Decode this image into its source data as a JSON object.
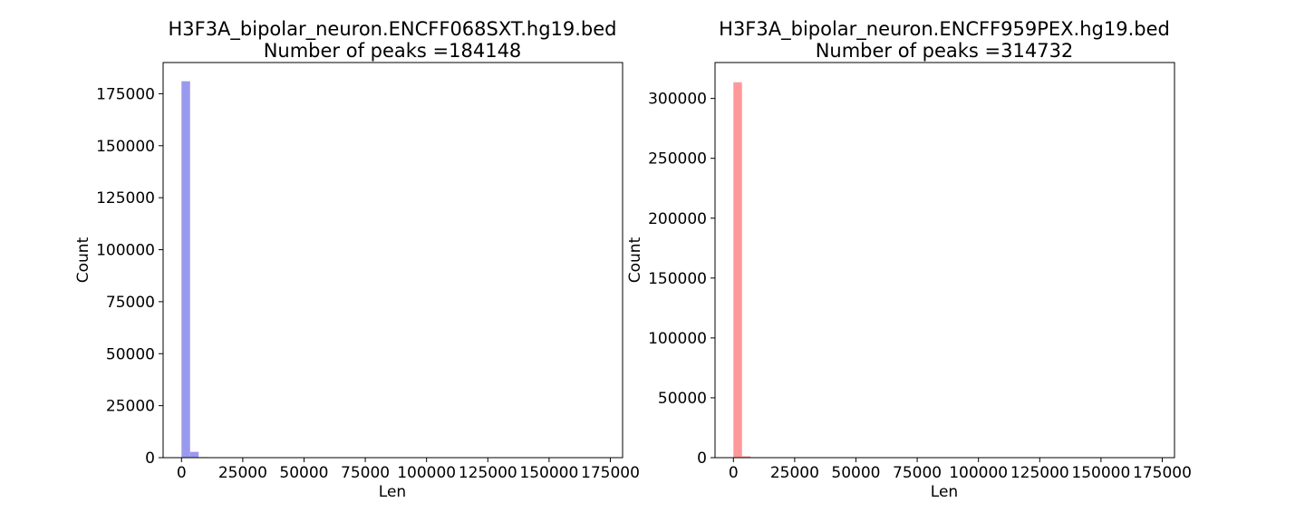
{
  "chart_data": [
    {
      "type": "bar",
      "title_line1": "H3F3A_bipolar_neuron.ENCFF068SXT.hg19.bed",
      "title_line2": "Number of peaks =184148",
      "xlabel": "Len",
      "ylabel": "Count",
      "color": "#9999ee",
      "xlim": [
        -7500,
        180000
      ],
      "ylim": [
        0,
        190000
      ],
      "xticks": [
        0,
        25000,
        50000,
        75000,
        100000,
        125000,
        150000,
        175000
      ],
      "yticks": [
        0,
        25000,
        50000,
        75000,
        100000,
        125000,
        150000,
        175000
      ],
      "bin_width": 3500,
      "bins": [
        {
          "x": 0,
          "count": 181000
        },
        {
          "x": 3500,
          "count": 2800
        },
        {
          "x": 7000,
          "count": 250
        },
        {
          "x": 10500,
          "count": 60
        }
      ]
    },
    {
      "type": "bar",
      "title_line1": "H3F3A_bipolar_neuron.ENCFF959PEX.hg19.bed",
      "title_line2": "Number of peaks =314732",
      "xlabel": "Len",
      "ylabel": "Count",
      "color": "#ff9999",
      "xlim": [
        -7500,
        180000
      ],
      "ylim": [
        0,
        330000
      ],
      "xticks": [
        0,
        25000,
        50000,
        75000,
        100000,
        125000,
        150000,
        175000
      ],
      "yticks": [
        0,
        50000,
        100000,
        150000,
        200000,
        250000,
        300000
      ],
      "bin_width": 3500,
      "bins": [
        {
          "x": 0,
          "count": 313500
        },
        {
          "x": 3500,
          "count": 1100
        },
        {
          "x": 7000,
          "count": 120
        }
      ]
    }
  ]
}
